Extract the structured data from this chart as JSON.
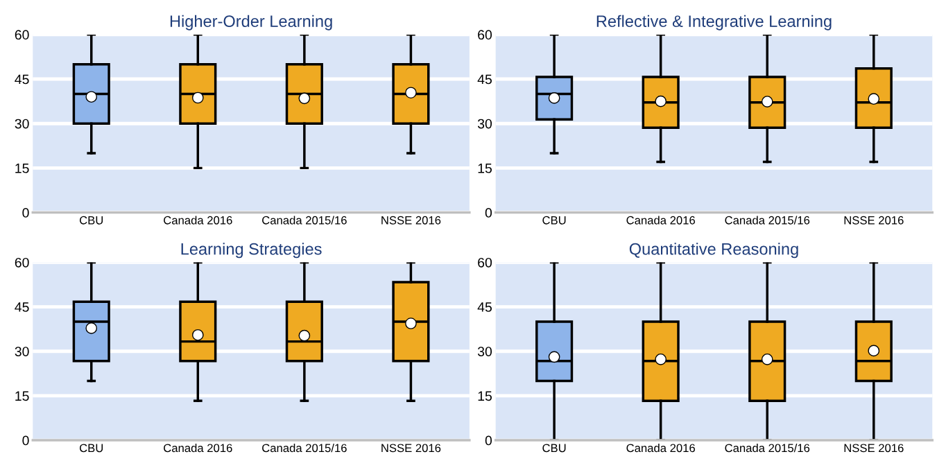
{
  "chart_data": [
    {
      "type": "box",
      "title": "Higher-Order Learning",
      "categories": [
        "CBU",
        "Canada 2016",
        "Canada 2015/16",
        "NSSE 2016"
      ],
      "colors": [
        "#8eb4ea",
        "#efaa22",
        "#efaa22",
        "#efaa22"
      ],
      "ylim": [
        0,
        60
      ],
      "yticks": [
        0,
        15,
        30,
        45,
        60
      ],
      "grid": "y",
      "boxes": [
        {
          "low": 20,
          "q1": 30,
          "median": 40,
          "q3": 50,
          "high": 60,
          "mean": 39
        },
        {
          "low": 15,
          "q1": 30,
          "median": 40,
          "q3": 50,
          "high": 60,
          "mean": 38.7
        },
        {
          "low": 15,
          "q1": 30,
          "median": 40,
          "q3": 50,
          "high": 60,
          "mean": 38.5
        },
        {
          "low": 20,
          "q1": 30,
          "median": 40,
          "q3": 50,
          "high": 60,
          "mean": 40.4
        }
      ]
    },
    {
      "type": "box",
      "title": "Reflective & Integrative Learning",
      "categories": [
        "CBU",
        "Canada 2016",
        "Canada 2015/16",
        "NSSE 2016"
      ],
      "colors": [
        "#8eb4ea",
        "#efaa22",
        "#efaa22",
        "#efaa22"
      ],
      "ylim": [
        0,
        60
      ],
      "yticks": [
        0,
        15,
        30,
        45,
        60
      ],
      "grid": "y",
      "boxes": [
        {
          "low": 20,
          "q1": 31.4,
          "median": 40,
          "q3": 45.7,
          "high": 60,
          "mean": 38.6
        },
        {
          "low": 17.1,
          "q1": 28.6,
          "median": 37.1,
          "q3": 45.7,
          "high": 60,
          "mean": 37.5
        },
        {
          "low": 17.1,
          "q1": 28.6,
          "median": 37.1,
          "q3": 45.7,
          "high": 60,
          "mean": 37.4
        },
        {
          "low": 17.1,
          "q1": 28.6,
          "median": 37.1,
          "q3": 48.6,
          "high": 60,
          "mean": 38.3
        }
      ]
    },
    {
      "type": "box",
      "title": "Learning Strategies",
      "categories": [
        "CBU",
        "Canada 2016",
        "Canada 2015/16",
        "NSSE 2016"
      ],
      "colors": [
        "#8eb4ea",
        "#efaa22",
        "#efaa22",
        "#efaa22"
      ],
      "ylim": [
        0,
        60
      ],
      "yticks": [
        0,
        15,
        30,
        45,
        60
      ],
      "grid": "y",
      "boxes": [
        {
          "low": 20,
          "q1": 26.7,
          "median": 40,
          "q3": 46.7,
          "high": 60,
          "mean": 37.8
        },
        {
          "low": 13.3,
          "q1": 26.7,
          "median": 33.3,
          "q3": 46.7,
          "high": 60,
          "mean": 35.5
        },
        {
          "low": 13.3,
          "q1": 26.7,
          "median": 33.3,
          "q3": 46.7,
          "high": 60,
          "mean": 35.3
        },
        {
          "low": 13.3,
          "q1": 26.7,
          "median": 40,
          "q3": 53.3,
          "high": 60,
          "mean": 39.4
        }
      ]
    },
    {
      "type": "box",
      "title": "Quantitative Reasoning",
      "categories": [
        "CBU",
        "Canada 2016",
        "Canada 2015/16",
        "NSSE 2016"
      ],
      "colors": [
        "#8eb4ea",
        "#efaa22",
        "#efaa22",
        "#efaa22"
      ],
      "ylim": [
        0,
        60
      ],
      "yticks": [
        0,
        15,
        30,
        45,
        60
      ],
      "grid": "y",
      "boxes": [
        {
          "low": 0,
          "q1": 20,
          "median": 26.7,
          "q3": 40,
          "high": 60,
          "mean": 28.1
        },
        {
          "low": 0,
          "q1": 13.3,
          "median": 26.7,
          "q3": 40,
          "high": 60,
          "mean": 27.3
        },
        {
          "low": 0,
          "q1": 13.3,
          "median": 26.7,
          "q3": 40,
          "high": 60,
          "mean": 27.3
        },
        {
          "low": 0,
          "q1": 20,
          "median": 26.7,
          "q3": 40,
          "high": 60,
          "mean": 30.2
        }
      ]
    }
  ]
}
